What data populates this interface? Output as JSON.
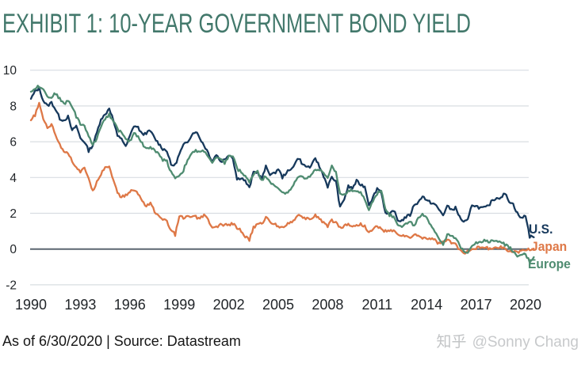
{
  "title": "EXHIBIT 1: 10-YEAR GOVERNMENT BOND YIELD",
  "footer": {
    "caption": "As of 6/30/2020 | Source: Datastream"
  },
  "watermark": {
    "brand": "知乎",
    "handle": "@Sonny Chang"
  },
  "colors": {
    "title": "#42786B",
    "us": "#17395C",
    "japan": "#DE7847",
    "europe": "#4F8C71",
    "grid": "#D8DDE2",
    "zero_line": "#5B6670",
    "axis_text": "#212529"
  },
  "chart_data": {
    "type": "line",
    "title": "EXHIBIT 1: 10-YEAR GOVERNMENT BOND YIELD",
    "xlabel": "",
    "ylabel": "",
    "ylim": [
      -2,
      10
    ],
    "xlim": [
      1990,
      2020.5
    ],
    "grid": "horizontal",
    "legend_position": "right-end-of-lines",
    "y_ticks": [
      10,
      8,
      6,
      4,
      2,
      0,
      -2
    ],
    "x_label_ticks": [
      1990,
      1993,
      1996,
      1999,
      2002,
      2005,
      2008,
      2011,
      2014,
      2017,
      2020
    ],
    "x_start": 1990,
    "x_step": 0.25,
    "series": [
      {
        "name": "U.S.",
        "color": "#17395C",
        "values": [
          8.4,
          8.8,
          9.0,
          8.3,
          8.0,
          8.2,
          7.8,
          7.3,
          7.2,
          7.4,
          6.6,
          6.9,
          6.2,
          6.0,
          5.5,
          5.8,
          6.5,
          7.3,
          7.5,
          7.9,
          7.2,
          6.3,
          6.2,
          5.7,
          6.3,
          6.9,
          6.8,
          6.4,
          6.5,
          6.6,
          6.2,
          5.9,
          5.6,
          5.5,
          4.7,
          4.7,
          5.3,
          5.8,
          6.0,
          6.4,
          6.6,
          6.2,
          5.8,
          5.4,
          4.9,
          5.3,
          4.9,
          5.0,
          5.3,
          5.1,
          3.9,
          4.0,
          3.8,
          3.4,
          4.3,
          4.3,
          3.9,
          4.6,
          4.2,
          4.2,
          4.5,
          4.0,
          4.3,
          4.4,
          4.8,
          5.1,
          4.7,
          4.6,
          4.6,
          5.1,
          4.6,
          4.1,
          3.5,
          4.0,
          3.8,
          2.3,
          2.8,
          3.5,
          3.4,
          3.8,
          3.6,
          3.5,
          2.5,
          2.9,
          3.4,
          3.2,
          2.0,
          1.9,
          2.2,
          1.6,
          1.6,
          1.8,
          1.9,
          2.5,
          2.6,
          3.0,
          2.7,
          2.6,
          2.5,
          2.2,
          1.9,
          2.4,
          2.2,
          2.3,
          1.8,
          1.5,
          1.6,
          2.5,
          2.4,
          2.3,
          2.3,
          2.4,
          2.75,
          2.85,
          2.9,
          3.1,
          2.7,
          2.5,
          2.0,
          1.7,
          1.9,
          0.7,
          0.66
        ]
      },
      {
        "name": "Japan",
        "color": "#DE7847",
        "values": [
          7.2,
          7.5,
          8.1,
          7.3,
          6.8,
          7.0,
          6.4,
          5.8,
          5.5,
          5.4,
          4.9,
          4.6,
          4.3,
          4.5,
          4.0,
          3.2,
          3.8,
          4.2,
          4.6,
          4.6,
          3.9,
          3.1,
          2.9,
          3.0,
          3.2,
          3.3,
          3.1,
          2.7,
          2.4,
          2.6,
          2.1,
          1.8,
          1.7,
          1.5,
          1.1,
          0.8,
          1.9,
          1.7,
          1.8,
          1.8,
          1.8,
          1.7,
          1.9,
          1.6,
          1.2,
          1.2,
          1.4,
          1.3,
          1.4,
          1.4,
          1.2,
          1.0,
          0.7,
          0.5,
          1.2,
          1.4,
          1.4,
          1.8,
          1.5,
          1.4,
          1.3,
          1.2,
          1.4,
          1.5,
          1.7,
          1.9,
          1.7,
          1.7,
          1.7,
          1.9,
          1.7,
          1.5,
          1.3,
          1.6,
          1.5,
          1.2,
          1.3,
          1.4,
          1.3,
          1.3,
          1.4,
          1.3,
          0.9,
          1.1,
          1.3,
          1.1,
          1.0,
          1.0,
          1.0,
          0.85,
          0.75,
          0.75,
          0.55,
          0.85,
          0.7,
          0.65,
          0.6,
          0.6,
          0.5,
          0.3,
          0.4,
          0.5,
          0.35,
          0.27,
          -0.05,
          -0.23,
          -0.09,
          0.04,
          0.07,
          0.09,
          0.06,
          0.05,
          0.05,
          0.04,
          0.13,
          0.0,
          -0.08,
          -0.16,
          -0.22,
          -0.02,
          -0.05,
          0.0,
          0.02
        ]
      },
      {
        "name": "Europe",
        "color": "#4F8C71",
        "values": [
          8.8,
          9.0,
          9.1,
          9.0,
          8.5,
          8.5,
          8.7,
          8.4,
          8.1,
          8.3,
          8.0,
          7.4,
          7.0,
          6.9,
          6.3,
          5.8,
          6.2,
          6.9,
          7.3,
          7.5,
          7.2,
          6.7,
          6.5,
          6.1,
          6.0,
          6.5,
          6.3,
          5.9,
          5.6,
          5.7,
          5.5,
          5.3,
          5.0,
          4.9,
          4.3,
          4.0,
          4.1,
          4.4,
          5.0,
          5.3,
          5.5,
          5.4,
          5.5,
          5.2,
          4.8,
          5.1,
          5.0,
          4.8,
          5.2,
          5.2,
          4.5,
          4.3,
          4.1,
          3.7,
          4.2,
          4.4,
          3.8,
          4.1,
          3.8,
          3.5,
          3.4,
          3.2,
          3.1,
          3.3,
          3.7,
          4.1,
          4.0,
          4.0,
          4.1,
          4.5,
          4.4,
          4.3,
          3.9,
          4.6,
          4.3,
          3.1,
          3.0,
          3.3,
          3.3,
          3.2,
          3.2,
          2.7,
          2.2,
          2.7,
          3.1,
          3.3,
          2.3,
          1.9,
          1.8,
          1.4,
          1.3,
          1.4,
          1.5,
          1.35,
          1.7,
          1.9,
          1.7,
          1.4,
          1.0,
          0.6,
          0.3,
          0.8,
          0.7,
          0.6,
          0.2,
          -0.1,
          -0.15,
          0.2,
          0.4,
          0.35,
          0.45,
          0.4,
          0.55,
          0.4,
          0.45,
          0.25,
          0.1,
          -0.1,
          -0.5,
          -0.3,
          -0.3,
          -0.7,
          -0.45
        ]
      }
    ]
  }
}
